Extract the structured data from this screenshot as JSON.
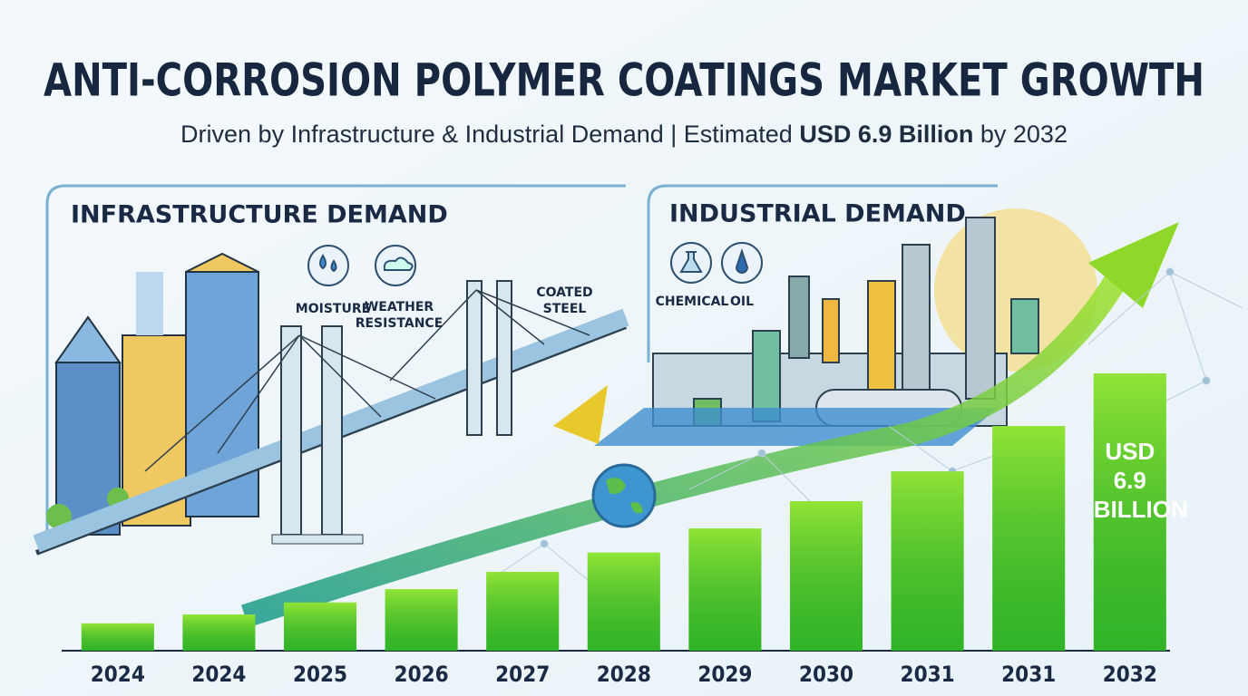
{
  "chart_data": {
    "type": "bar",
    "title": "ANTI-CORROSION POLYMER COATINGS MARKET GROWTH",
    "subtitle_start": "Driven by Infrastructure & Industrial Demand | Estimated ",
    "subtitle_bold": "USD 6.9 Billion",
    "subtitle_end": " by 2032",
    "categories": [
      "2024",
      "2024",
      "2025",
      "2026",
      "2027",
      "2028",
      "2029",
      "2030",
      "2031",
      "2031",
      "2032"
    ],
    "values": [
      0.68,
      0.9,
      1.2,
      1.53,
      1.96,
      2.44,
      3.04,
      3.72,
      4.46,
      5.59,
      6.9
    ],
    "value_labels": [
      null,
      null,
      null,
      null,
      null,
      null,
      null,
      null,
      null,
      null,
      "USD 6.9 BILLION"
    ],
    "color": "#3fc22b"
  },
  "panels": [
    {
      "title": "INFRASTRUCTURE DEMAND",
      "labels": [
        "MOISTURE",
        "WEATHER RESISTANCE",
        "COATED STEEL"
      ]
    },
    {
      "title": "INDUSTRIAL DEMAND",
      "labels": [
        "CHEMICAL",
        "OIL"
      ]
    }
  ]
}
